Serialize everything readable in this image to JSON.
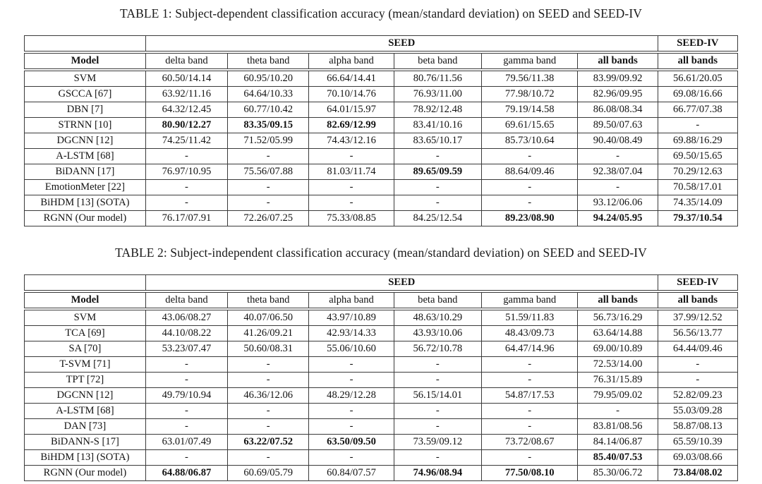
{
  "colors": {
    "background": "#ffffff",
    "text": "#131313",
    "border": "#3a3a3a"
  },
  "tables": [
    {
      "title": "TABLE 1: Subject-dependent classification accuracy (mean/standard deviation) on SEED and SEED-IV",
      "group_headers": {
        "seed": "SEED",
        "seed_iv": "SEED-IV"
      },
      "columns": [
        "Model",
        "delta band",
        "theta band",
        "alpha band",
        "beta band",
        "gamma band",
        "all bands",
        "all bands"
      ],
      "rows": [
        {
          "model": "SVM",
          "cells": [
            {
              "v": "60.50/14.14"
            },
            {
              "v": "60.95/10.20"
            },
            {
              "v": "66.64/14.41"
            },
            {
              "v": "80.76/11.56"
            },
            {
              "v": "79.56/11.38"
            },
            {
              "v": "83.99/09.92"
            },
            {
              "v": "56.61/20.05"
            }
          ]
        },
        {
          "model": "GSCCA [67]",
          "cells": [
            {
              "v": "63.92/11.16"
            },
            {
              "v": "64.64/10.33"
            },
            {
              "v": "70.10/14.76"
            },
            {
              "v": "76.93/11.00"
            },
            {
              "v": "77.98/10.72"
            },
            {
              "v": "82.96/09.95"
            },
            {
              "v": "69.08/16.66"
            }
          ]
        },
        {
          "model": "DBN [7]",
          "cells": [
            {
              "v": "64.32/12.45"
            },
            {
              "v": "60.77/10.42"
            },
            {
              "v": "64.01/15.97"
            },
            {
              "v": "78.92/12.48"
            },
            {
              "v": "79.19/14.58"
            },
            {
              "v": "86.08/08.34"
            },
            {
              "v": "66.77/07.38"
            }
          ]
        },
        {
          "model": "STRNN [10]",
          "cells": [
            {
              "v": "80.90/12.27",
              "b": true
            },
            {
              "v": "83.35/09.15",
              "b": true
            },
            {
              "v": "82.69/12.99",
              "b": true
            },
            {
              "v": "83.41/10.16"
            },
            {
              "v": "69.61/15.65"
            },
            {
              "v": "89.50/07.63"
            },
            {
              "v": "-"
            }
          ]
        },
        {
          "model": "DGCNN [12]",
          "cells": [
            {
              "v": "74.25/11.42"
            },
            {
              "v": "71.52/05.99"
            },
            {
              "v": "74.43/12.16"
            },
            {
              "v": "83.65/10.17"
            },
            {
              "v": "85.73/10.64"
            },
            {
              "v": "90.40/08.49"
            },
            {
              "v": "69.88/16.29"
            }
          ]
        },
        {
          "model": "A-LSTM [68]",
          "cells": [
            {
              "v": "-"
            },
            {
              "v": "-"
            },
            {
              "v": "-"
            },
            {
              "v": "-"
            },
            {
              "v": "-"
            },
            {
              "v": "-"
            },
            {
              "v": "69.50/15.65"
            }
          ]
        },
        {
          "model": "BiDANN [17]",
          "cells": [
            {
              "v": "76.97/10.95"
            },
            {
              "v": "75.56/07.88"
            },
            {
              "v": "81.03/11.74"
            },
            {
              "v": "89.65/09.59",
              "b": true
            },
            {
              "v": "88.64/09.46"
            },
            {
              "v": "92.38/07.04"
            },
            {
              "v": "70.29/12.63"
            }
          ]
        },
        {
          "model": "EmotionMeter [22]",
          "cells": [
            {
              "v": "-"
            },
            {
              "v": "-"
            },
            {
              "v": "-"
            },
            {
              "v": "-"
            },
            {
              "v": "-"
            },
            {
              "v": "-"
            },
            {
              "v": "70.58/17.01"
            }
          ]
        },
        {
          "model": "BiHDM [13] (SOTA)",
          "cells": [
            {
              "v": "-"
            },
            {
              "v": "-"
            },
            {
              "v": "-"
            },
            {
              "v": "-"
            },
            {
              "v": "-"
            },
            {
              "v": "93.12/06.06"
            },
            {
              "v": "74.35/14.09"
            }
          ]
        },
        {
          "model": "RGNN (Our model)",
          "cells": [
            {
              "v": "76.17/07.91"
            },
            {
              "v": "72.26/07.25"
            },
            {
              "v": "75.33/08.85"
            },
            {
              "v": "84.25/12.54"
            },
            {
              "v": "89.23/08.90",
              "b": true
            },
            {
              "v": "94.24/05.95",
              "b": true
            },
            {
              "v": "79.37/10.54",
              "b": true
            }
          ]
        }
      ]
    },
    {
      "title": "TABLE 2: Subject-independent classification accuracy (mean/standard deviation) on SEED and SEED-IV",
      "group_headers": {
        "seed": "SEED",
        "seed_iv": "SEED-IV"
      },
      "columns": [
        "Model",
        "delta band",
        "theta band",
        "alpha band",
        "beta band",
        "gamma band",
        "all bands",
        "all bands"
      ],
      "rows": [
        {
          "model": "SVM",
          "cells": [
            {
              "v": "43.06/08.27"
            },
            {
              "v": "40.07/06.50"
            },
            {
              "v": "43.97/10.89"
            },
            {
              "v": "48.63/10.29"
            },
            {
              "v": "51.59/11.83"
            },
            {
              "v": "56.73/16.29"
            },
            {
              "v": "37.99/12.52"
            }
          ]
        },
        {
          "model": "TCA [69]",
          "cells": [
            {
              "v": "44.10/08.22"
            },
            {
              "v": "41.26/09.21"
            },
            {
              "v": "42.93/14.33"
            },
            {
              "v": "43.93/10.06"
            },
            {
              "v": "48.43/09.73"
            },
            {
              "v": "63.64/14.88"
            },
            {
              "v": "56.56/13.77"
            }
          ]
        },
        {
          "model": "SA [70]",
          "cells": [
            {
              "v": "53.23/07.47"
            },
            {
              "v": "50.60/08.31"
            },
            {
              "v": "55.06/10.60"
            },
            {
              "v": "56.72/10.78"
            },
            {
              "v": "64.47/14.96"
            },
            {
              "v": "69.00/10.89"
            },
            {
              "v": "64.44/09.46"
            }
          ]
        },
        {
          "model": "T-SVM [71]",
          "cells": [
            {
              "v": "-"
            },
            {
              "v": "-"
            },
            {
              "v": "-"
            },
            {
              "v": "-"
            },
            {
              "v": "-"
            },
            {
              "v": "72.53/14.00"
            },
            {
              "v": "-"
            }
          ]
        },
        {
          "model": "TPT [72]",
          "cells": [
            {
              "v": "-"
            },
            {
              "v": "-"
            },
            {
              "v": "-"
            },
            {
              "v": "-"
            },
            {
              "v": "-"
            },
            {
              "v": "76.31/15.89"
            },
            {
              "v": "-"
            }
          ]
        },
        {
          "model": "DGCNN [12]",
          "cells": [
            {
              "v": "49.79/10.94"
            },
            {
              "v": "46.36/12.06"
            },
            {
              "v": "48.29/12.28"
            },
            {
              "v": "56.15/14.01"
            },
            {
              "v": "54.87/17.53"
            },
            {
              "v": "79.95/09.02"
            },
            {
              "v": "52.82/09.23"
            }
          ]
        },
        {
          "model": "A-LSTM [68]",
          "cells": [
            {
              "v": "-"
            },
            {
              "v": "-"
            },
            {
              "v": "-"
            },
            {
              "v": "-"
            },
            {
              "v": "-"
            },
            {
              "v": "-"
            },
            {
              "v": "55.03/09.28"
            }
          ]
        },
        {
          "model": "DAN [73]",
          "cells": [
            {
              "v": "-"
            },
            {
              "v": "-"
            },
            {
              "v": "-"
            },
            {
              "v": "-"
            },
            {
              "v": "-"
            },
            {
              "v": "83.81/08.56"
            },
            {
              "v": "58.87/08.13"
            }
          ]
        },
        {
          "model": "BiDANN-S [17]",
          "cells": [
            {
              "v": "63.01/07.49"
            },
            {
              "v": "63.22/07.52",
              "b": true
            },
            {
              "v": "63.50/09.50",
              "b": true
            },
            {
              "v": "73.59/09.12"
            },
            {
              "v": "73.72/08.67"
            },
            {
              "v": "84.14/06.87"
            },
            {
              "v": "65.59/10.39"
            }
          ]
        },
        {
          "model": "BiHDM [13] (SOTA)",
          "cells": [
            {
              "v": "-"
            },
            {
              "v": "-"
            },
            {
              "v": "-"
            },
            {
              "v": "-"
            },
            {
              "v": "-"
            },
            {
              "v": "85.40/07.53",
              "b": true
            },
            {
              "v": "69.03/08.66"
            }
          ]
        },
        {
          "model": "RGNN (Our model)",
          "cells": [
            {
              "v": "64.88/06.87",
              "b": true
            },
            {
              "v": "60.69/05.79"
            },
            {
              "v": "60.84/07.57"
            },
            {
              "v": "74.96/08.94",
              "b": true
            },
            {
              "v": "77.50/08.10",
              "b": true
            },
            {
              "v": "85.30/06.72"
            },
            {
              "v": "73.84/08.02",
              "b": true
            }
          ]
        }
      ]
    }
  ]
}
